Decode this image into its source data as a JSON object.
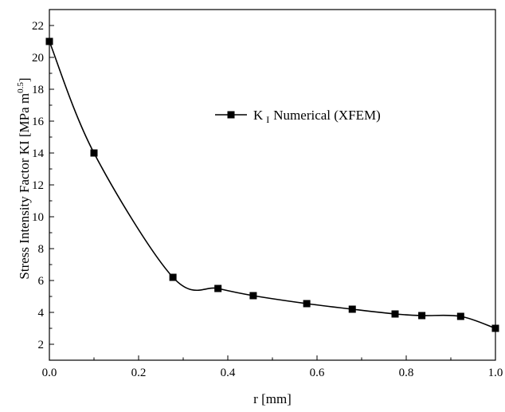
{
  "chart_data": {
    "type": "line",
    "title": "",
    "xlabel": "r [mm]",
    "ylabel": {
      "main": "Stress Intensity Factor KI [MPa m",
      "sup": "0.5",
      "close": "]"
    },
    "xlim": [
      0.0,
      1.0
    ],
    "ylim": [
      1,
      23
    ],
    "x_ticks": [
      0.0,
      0.2,
      0.4,
      0.6,
      0.8,
      1.0
    ],
    "x_tick_labels": [
      "0.0",
      "0.2",
      "0.4",
      "0.6",
      "0.8",
      "1.0"
    ],
    "y_ticks": [
      2,
      4,
      6,
      8,
      10,
      12,
      14,
      16,
      18,
      20,
      22
    ],
    "y_tick_labels": [
      "2",
      "4",
      "6",
      "8",
      "10",
      "12",
      "14",
      "16",
      "18",
      "20",
      "22"
    ],
    "grid": false,
    "legend_position": "top-right",
    "series": [
      {
        "name": "K I Numerical (XFEM)",
        "legend": {
          "main": "K",
          "sub": "I",
          "rest": "Numerical (XFEM)"
        },
        "color": "#000000",
        "marker": "square",
        "x": [
          0.0,
          0.1,
          0.277,
          0.378,
          0.457,
          0.577,
          0.679,
          0.775,
          0.835,
          0.922,
          1.0
        ],
        "y": [
          21.0,
          14.0,
          6.2,
          5.5,
          5.05,
          4.55,
          4.2,
          3.9,
          3.8,
          3.75,
          3.0
        ]
      }
    ]
  }
}
